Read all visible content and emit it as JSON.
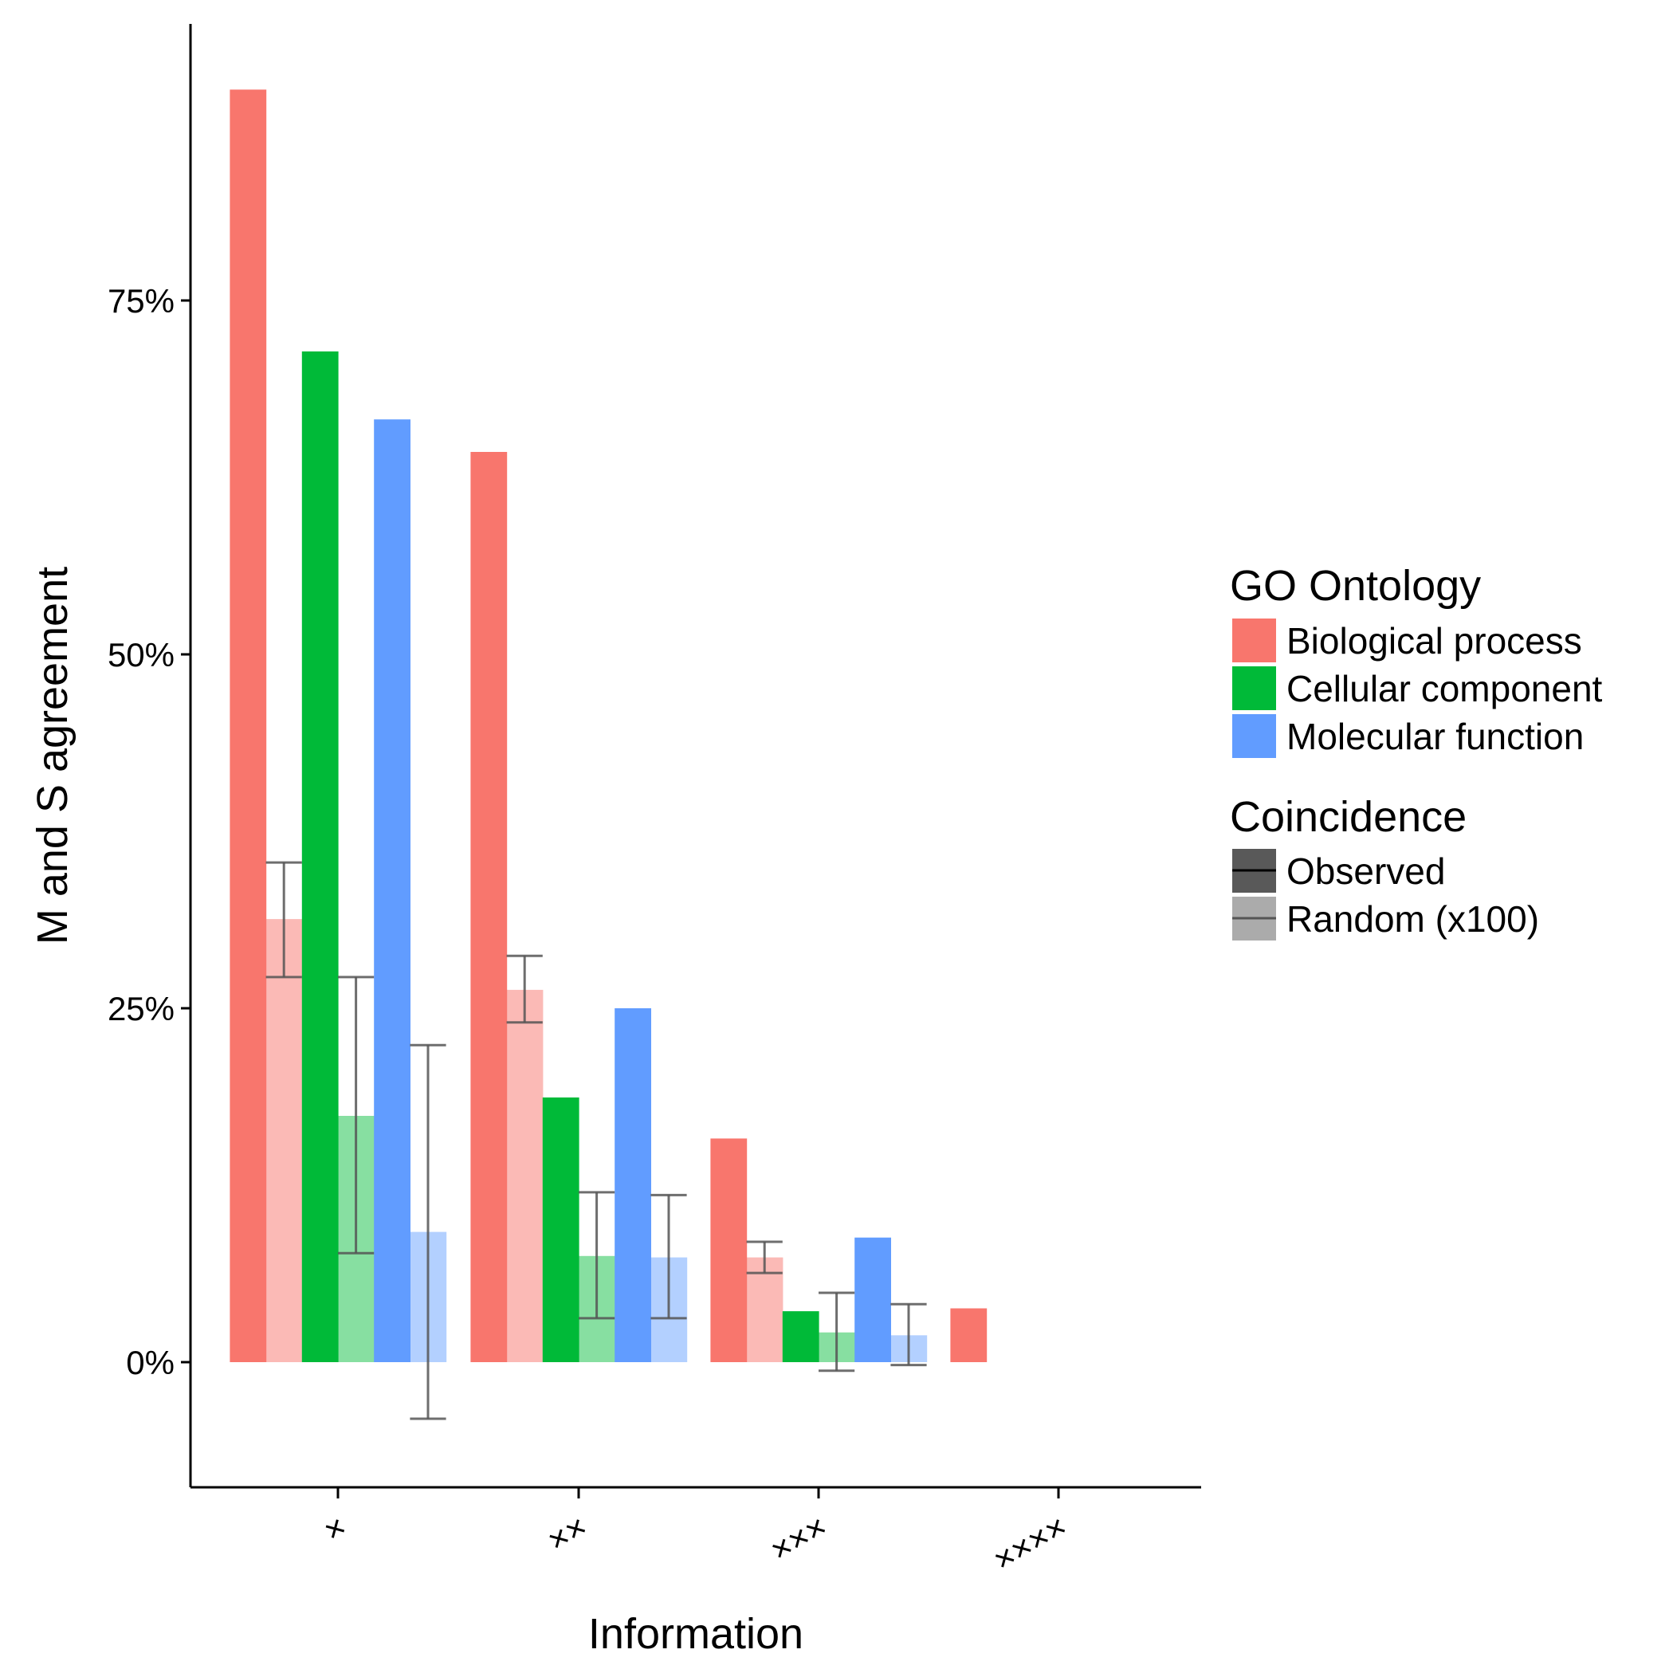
{
  "chart_data": {
    "type": "bar",
    "xlabel": "Information",
    "ylabel": "M and S agreement",
    "categories": [
      "×",
      "××",
      "×××",
      "××××"
    ],
    "yticks": [
      0,
      25,
      50,
      75
    ],
    "ytick_labels": [
      "0%",
      "25%",
      "50%",
      "75%"
    ],
    "ylim": [
      -8.7,
      94.7
    ],
    "grid": false,
    "legend_placement": "right",
    "legend": {
      "fill_title": "GO Ontology",
      "fill_entries": [
        {
          "label": "Biological process",
          "color": "#F8766D"
        },
        {
          "label": "Cellular component",
          "color": "#00BA38"
        },
        {
          "label": "Molecular function",
          "color": "#619CFF"
        }
      ],
      "alpha_title": "Coincidence",
      "alpha_entries": [
        {
          "label": "Observed",
          "opacity": 1.0
        },
        {
          "label": "Random (x100)",
          "opacity": 0.45
        }
      ]
    },
    "series": [
      {
        "ontology": "Biological process",
        "coincidence": "Observed",
        "color": "#F8766D",
        "opacity": 1.0,
        "values": [
          89.9,
          64.3,
          15.8,
          3.8
        ],
        "errors": [
          null,
          null,
          null,
          null
        ]
      },
      {
        "ontology": "Biological process",
        "coincidence": "Random (x100)",
        "color": "#F8766D",
        "opacity": 0.5,
        "values": [
          31.3,
          26.3,
          7.4,
          null
        ],
        "errors": [
          [
            27.2,
            35.3
          ],
          [
            24.0,
            28.7
          ],
          [
            6.3,
            8.5
          ],
          null
        ]
      },
      {
        "ontology": "Cellular component",
        "coincidence": "Observed",
        "color": "#00BA38",
        "opacity": 1.0,
        "values": [
          71.4,
          18.7,
          3.6,
          null
        ],
        "errors": [
          null,
          null,
          null,
          null
        ]
      },
      {
        "ontology": "Cellular component",
        "coincidence": "Random (x100)",
        "color": "#00BA38",
        "opacity": 0.47,
        "values": [
          17.4,
          7.5,
          2.1,
          null
        ],
        "errors": [
          [
            7.7,
            27.2
          ],
          [
            3.1,
            12.0
          ],
          [
            -0.6,
            4.9
          ],
          null
        ]
      },
      {
        "ontology": "Molecular function",
        "coincidence": "Observed",
        "color": "#619CFF",
        "opacity": 1.0,
        "values": [
          66.6,
          25.0,
          8.8,
          null
        ],
        "errors": [
          null,
          null,
          null,
          null
        ]
      },
      {
        "ontology": "Molecular function",
        "coincidence": "Random (x100)",
        "color": "#619CFF",
        "opacity": 0.48,
        "values": [
          9.2,
          7.4,
          1.9,
          null
        ],
        "errors": [
          [
            -4.0,
            22.4
          ],
          [
            3.1,
            11.8
          ],
          [
            -0.2,
            4.1
          ],
          null
        ]
      }
    ]
  }
}
